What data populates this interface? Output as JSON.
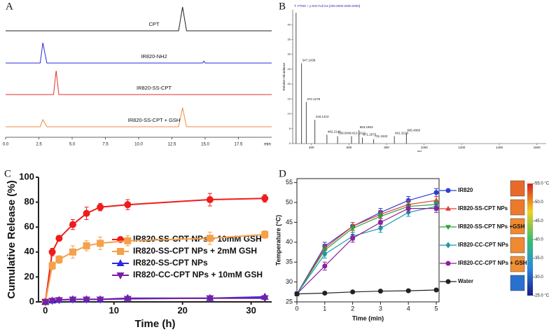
{
  "chart_data": [
    {
      "type": "chromatogram",
      "label": "A",
      "xlabel": "min",
      "xlim": [
        0,
        20
      ],
      "xticks": [
        {
          "value": 0,
          "label": "0.0"
        },
        2.5,
        {
          "value": 5,
          "label": "5.0"
        },
        7.5,
        {
          "value": 10,
          "label": "10.0"
        },
        12.5,
        {
          "value": 15,
          "label": "15.0"
        },
        17.5
      ],
      "series": [
        {
          "name": "CPT",
          "color": "#222222",
          "x": [
            0,
            13.0,
            13.3,
            13.6,
            20
          ],
          "values": [
            0,
            0,
            1,
            0,
            0
          ]
        },
        {
          "name": "IR820-NH2",
          "color": "#2b2bd9",
          "x": [
            0,
            2.6,
            2.8,
            3.1,
            14.8,
            14.9,
            15.0,
            20
          ],
          "values": [
            0,
            0,
            0.85,
            0,
            0,
            0.08,
            0,
            0
          ]
        },
        {
          "name": "IR820-SS-CPT",
          "color": "#e0302a",
          "x": [
            0,
            3.6,
            3.8,
            4.0,
            20
          ],
          "values": [
            0,
            0,
            1,
            0,
            0
          ]
        },
        {
          "name": "IR820-SS-CPT + GSH",
          "color": "#f08a3c",
          "x": [
            0,
            2.6,
            2.8,
            3.1,
            13.0,
            13.3,
            13.6,
            20
          ],
          "values": [
            0,
            0,
            0.3,
            0,
            0,
            0.8,
            0,
            0
          ]
        }
      ]
    },
    {
      "type": "spectrum",
      "label": "B",
      "title": "T: FTMS + p ESI Full ms [200.0000-2000.0000]",
      "xlabel": "m/z",
      "ylabel": "Relative Abundance",
      "xlim": [
        300,
        1650
      ],
      "xticks": [
        400,
        600,
        800,
        1000,
        1200,
        1400,
        1600
      ],
      "ylim": [
        0,
        45
      ],
      "yticks": [
        0,
        5,
        10,
        15,
        20,
        25,
        30,
        35,
        40
      ],
      "color": "#333333",
      "x": [
        318,
        347.1038,
        372.1275,
        418.141,
        482.2146,
        539.0049,
        613.1612,
        653.1903,
        671.2675,
        731.1923,
        841.3218,
        905.406
      ],
      "x_labels": [
        null,
        "347.1038",
        "372.1275",
        "418.1410",
        "482.2146",
        "539.0049",
        "613.1612",
        "653.1903",
        "671.2675",
        "731.1923",
        "841.3218",
        "905.4060"
      ],
      "values": [
        44,
        27,
        14,
        8,
        3,
        2.5,
        2.5,
        4.5,
        2,
        1.5,
        2.5,
        3.5
      ]
    },
    {
      "type": "line",
      "label": "C",
      "xlabel": "Time (h)",
      "ylabel": "Cumulative Release (%)",
      "frame": "axes",
      "xlim": [
        -1,
        33
      ],
      "xticks": [
        0,
        10,
        20,
        30
      ],
      "ylim": [
        0,
        100
      ],
      "yticks": [
        0,
        20,
        40,
        60,
        80,
        100
      ],
      "x": [
        0,
        1,
        2,
        4,
        6,
        8,
        12,
        24,
        32
      ],
      "series": [
        {
          "name": "IR820-SS-CPT NPs + 10mM GSH",
          "color": "#ee1c1c",
          "marker": "circle",
          "values": [
            0,
            40,
            51,
            62,
            71,
            76,
            78,
            82,
            83
          ],
          "errors": [
            1,
            3,
            2,
            4,
            5,
            3,
            4,
            5,
            3
          ]
        },
        {
          "name": "IR820-SS-CPT NPs + 2mM GSH",
          "color": "#f5a04a",
          "marker": "square",
          "values": [
            0,
            29,
            34,
            40,
            45,
            47,
            49,
            51,
            54
          ],
          "errors": [
            1,
            3,
            3,
            5,
            4,
            5,
            4,
            5,
            3
          ]
        },
        {
          "name": "IR820-SS-CPT NPs",
          "color": "#2a2ae0",
          "marker": "triangle",
          "values": [
            0,
            1,
            1.5,
            2,
            2,
            2,
            3,
            3,
            4
          ],
          "errors": [
            1,
            1,
            1,
            1,
            1,
            1,
            1,
            1,
            1
          ]
        },
        {
          "name": "IR820-CC-CPT NPs + 10mM GSH",
          "color": "#7b1fa2",
          "marker": "triangle-down",
          "values": [
            0,
            1,
            1.5,
            2,
            2,
            2,
            2.5,
            3,
            3
          ],
          "errors": [
            1,
            1,
            1,
            1,
            1,
            1,
            1,
            1,
            1
          ]
        }
      ]
    },
    {
      "type": "line",
      "label": "D",
      "xlabel": "Time (min)",
      "ylabel": "Temperature (°C)",
      "frame": "box",
      "xlim": [
        0,
        5.1
      ],
      "xticks": [
        0,
        1,
        2,
        3,
        4,
        5
      ],
      "ylim": [
        25,
        56
      ],
      "yticks": [
        25,
        30,
        35,
        40,
        45,
        50,
        55
      ],
      "x": [
        0,
        1,
        2,
        3,
        4,
        5
      ],
      "series": [
        {
          "name": "IR820",
          "color": "#2a3fd6",
          "marker": "circle",
          "values": [
            27,
            39,
            44,
            47.5,
            50.5,
            52.5
          ],
          "errors": [
            0.5,
            1,
            1,
            1,
            1,
            1
          ]
        },
        {
          "name": "IR820-SS-CPT NPs",
          "color": "#e53935",
          "marker": "triangle",
          "values": [
            27,
            38.5,
            44,
            47,
            49.5,
            50.5
          ],
          "errors": [
            0.5,
            1,
            1,
            1,
            1,
            1
          ]
        },
        {
          "name": "IR820-SS-CPT NPs +GSH",
          "color": "#2e9e3e",
          "marker": "triangle-down",
          "values": [
            27,
            38,
            43.5,
            46.5,
            49,
            49.5
          ],
          "errors": [
            0.5,
            1,
            1,
            1,
            1,
            1
          ]
        },
        {
          "name": "IR820-CC-CPT NPs",
          "color": "#1a9aa6",
          "marker": "diamond",
          "values": [
            27,
            37,
            41.5,
            43.5,
            47.5,
            49
          ],
          "errors": [
            0.5,
            1,
            1,
            1,
            1,
            1
          ]
        },
        {
          "name": "IR820-CC-CPT NPs + GSH",
          "color": "#8e1f9e",
          "marker": "circle",
          "values": [
            27,
            34,
            41,
            45,
            48.5,
            48.5
          ],
          "errors": [
            0.5,
            1,
            1,
            1,
            1,
            1
          ]
        },
        {
          "name": "Water",
          "color": "#222222",
          "marker": "circle",
          "values": [
            27,
            27.2,
            27.5,
            27.7,
            27.8,
            28
          ],
          "errors": [
            0.3,
            0.3,
            0.3,
            0.3,
            0.3,
            0.3
          ]
        }
      ],
      "colorbar": {
        "lim": [
          25,
          55
        ],
        "ticks": [
          {
            "value": 55,
            "label": "55.0 °C"
          },
          {
            "value": 50,
            "label": "50.0"
          },
          {
            "value": 45,
            "label": "45.0"
          },
          {
            "value": 40,
            "label": "40.0"
          },
          {
            "value": 35,
            "label": "35.0"
          },
          {
            "value": 30,
            "label": "30.0"
          },
          {
            "value": 25,
            "label": "25.0 °C"
          }
        ]
      }
    }
  ]
}
